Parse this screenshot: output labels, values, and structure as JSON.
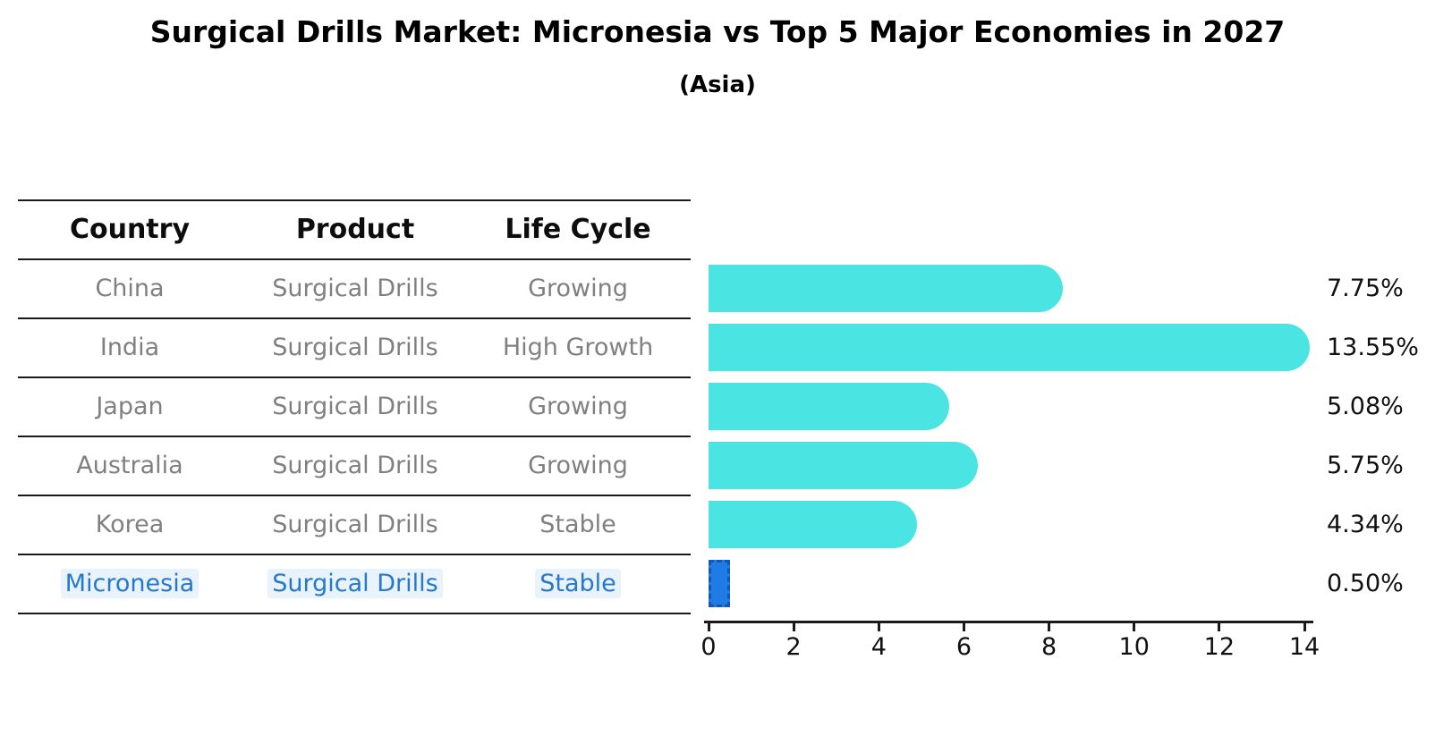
{
  "title": "Surgical Drills Market: Micronesia vs Top 5 Major Economies in 2027",
  "subtitle": "(Asia)",
  "table": {
    "headers": {
      "country": "Country",
      "product": "Product",
      "life_cycle": "Life Cycle"
    },
    "rows": [
      {
        "country": "China",
        "product": "Surgical Drills",
        "life_cycle": "Growing"
      },
      {
        "country": "India",
        "product": "Surgical Drills",
        "life_cycle": "High Growth"
      },
      {
        "country": "Japan",
        "product": "Surgical Drills",
        "life_cycle": "Growing"
      },
      {
        "country": "Australia",
        "product": "Surgical Drills",
        "life_cycle": "Growing"
      },
      {
        "country": "Korea",
        "product": "Surgical Drills",
        "life_cycle": "Stable"
      },
      {
        "country": "Micronesia",
        "product": "Surgical Drills",
        "life_cycle": "Stable"
      }
    ],
    "highlight_row": "Micronesia"
  },
  "chart_data": {
    "type": "bar",
    "orientation": "horizontal",
    "categories": [
      "China",
      "India",
      "Japan",
      "Australia",
      "Korea",
      "Micronesia"
    ],
    "values": [
      7.75,
      13.55,
      5.08,
      5.75,
      4.34,
      0.5
    ],
    "value_labels": [
      "7.75%",
      "13.55%",
      "5.08%",
      "5.75%",
      "4.34%",
      "0.50%"
    ],
    "xlim": [
      0,
      14
    ],
    "xticks": [
      "0",
      "2",
      "4",
      "6",
      "8",
      "10",
      "12",
      "14"
    ],
    "highlight_index": 5,
    "grid": "off",
    "legend": "none"
  },
  "colors": {
    "bar_cyan": "#4AE5E3",
    "bar_blue": "#1F7CE4",
    "bar_blue_border": "#1257B8",
    "highlight_text": "#2577D0",
    "row_text": "#808080",
    "header_text": "#0d0d0d",
    "axis": "#1a1a1a"
  }
}
